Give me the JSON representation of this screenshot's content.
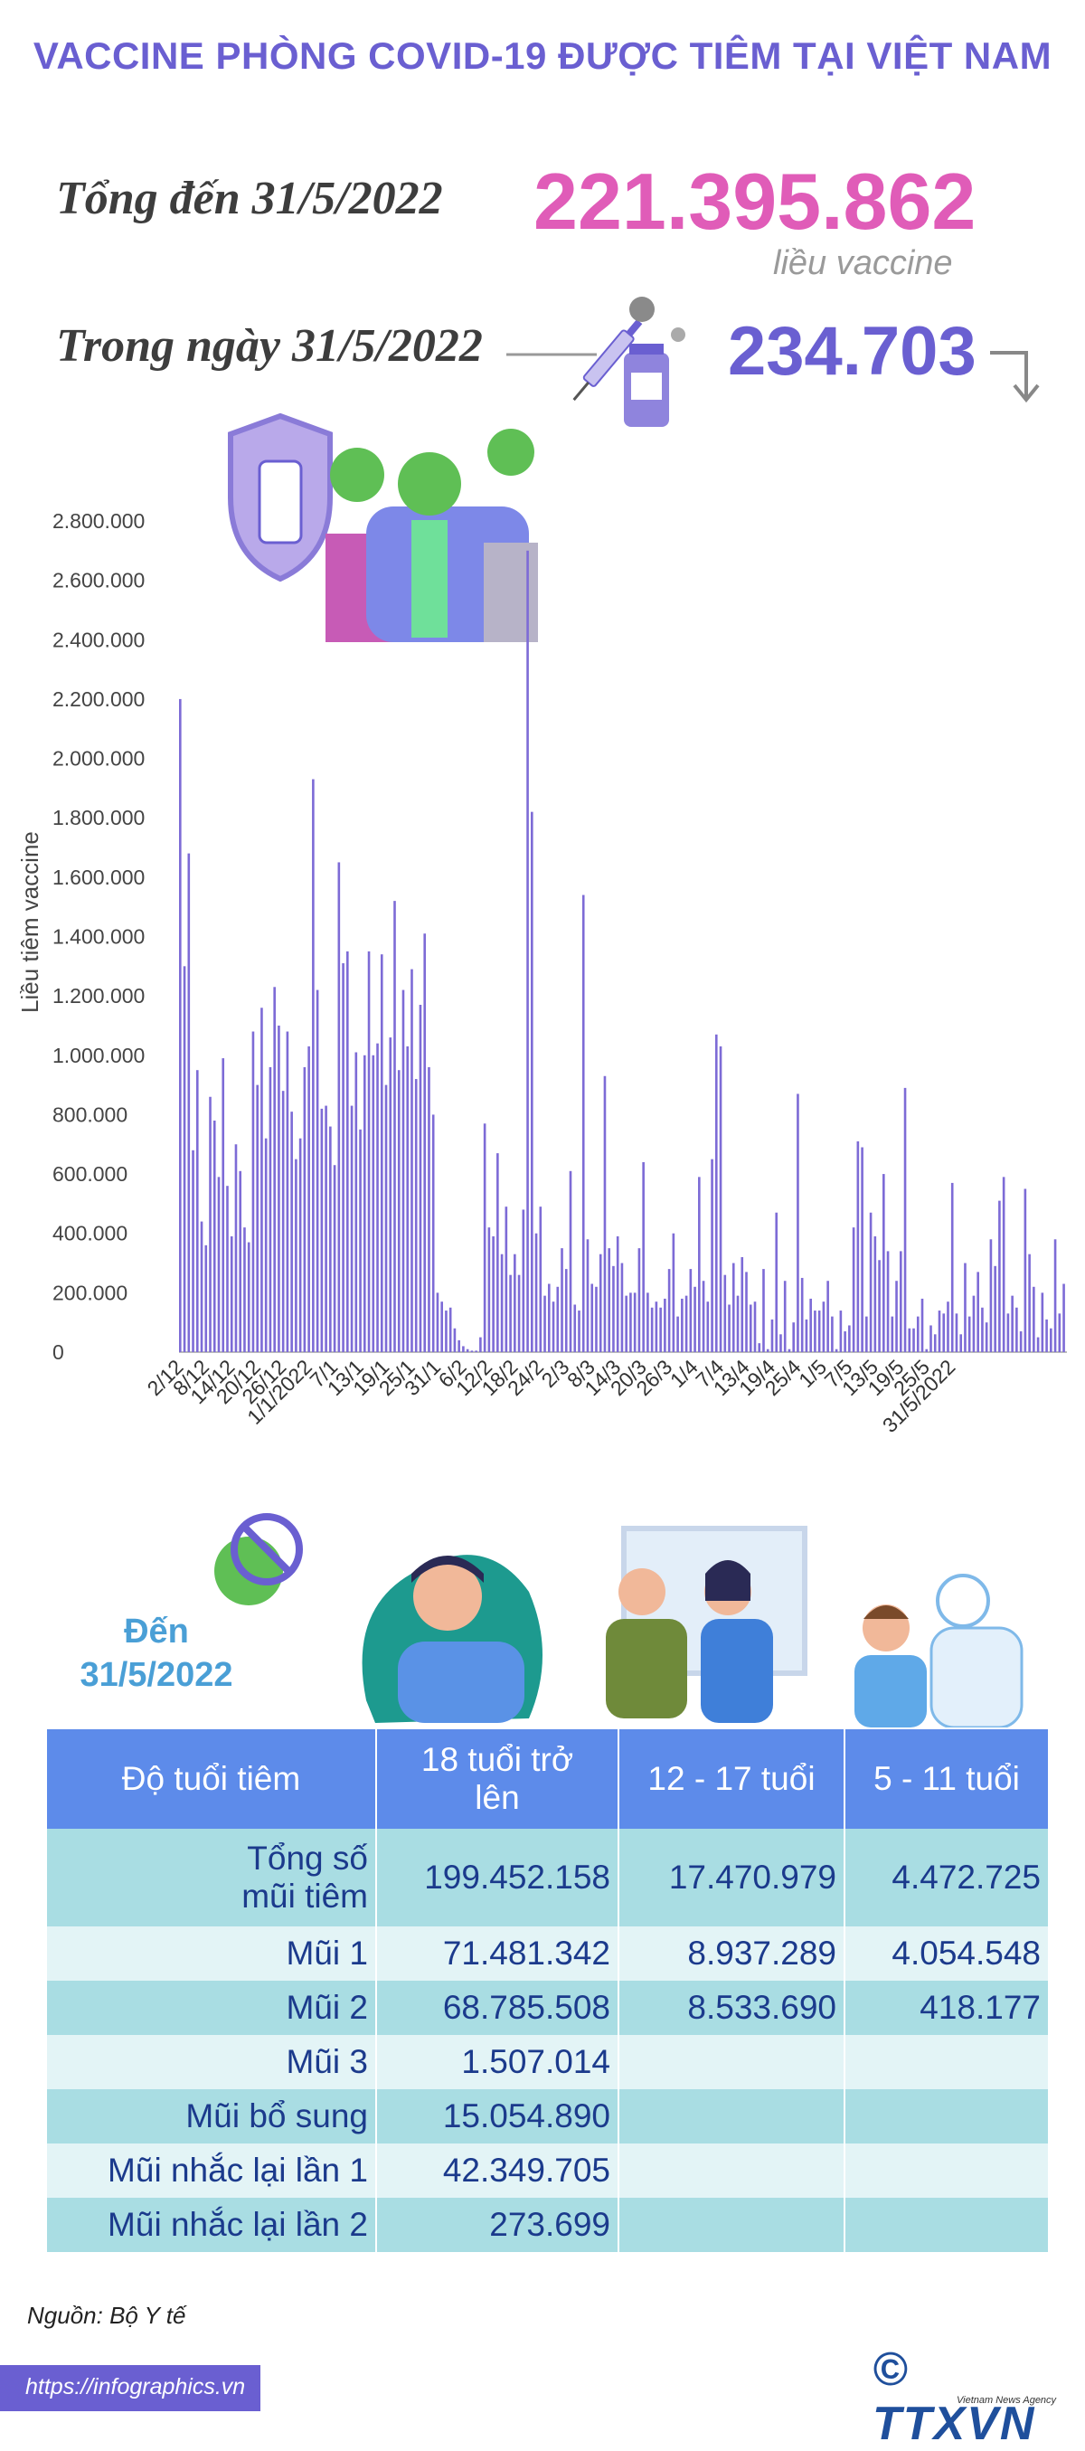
{
  "title": "VACCINE PHÒNG COVID-19 ĐƯỢC TIÊM TẠI VIỆT NAM",
  "summary": {
    "total_label": "Tổng đến 31/5/2022",
    "total_value": "221.395.862",
    "total_unit": "liều vaccine",
    "day_label": "Trong ngày 31/5/2022",
    "day_value": "234.703"
  },
  "colors": {
    "accent": "#6a5fd1",
    "pink": "#e05cb8",
    "bar": "#7d6bd6",
    "table_header": "#5d8bea",
    "row_dark": "#a9dde3",
    "row_light": "#e3f4f6",
    "text_blue": "#1b3a8c"
  },
  "chart_data": {
    "type": "bar",
    "ylabel": "Liều tiêm vaccine",
    "ylim": [
      0,
      2800000
    ],
    "yticks": [
      "0",
      "200.000",
      "400.000",
      "600.000",
      "800.000",
      "1.000.000",
      "1.200.000",
      "1.400.000",
      "1.600.000",
      "1.800.000",
      "2.000.000",
      "2.200.000",
      "2.400.000",
      "2.600.000",
      "2.800.000"
    ],
    "xticks": [
      "2/12",
      "8/12",
      "14/12",
      "20/12",
      "26/12",
      "1/1/2022",
      "7/1",
      "13/1",
      "19/1",
      "25/1",
      "31/1",
      "6/2",
      "12/2",
      "18/2",
      "24/2",
      "2/3",
      "8/3",
      "14/3",
      "20/3",
      "26/3",
      "1/4",
      "7/4",
      "13/4",
      "19/4",
      "25/4",
      "1/5",
      "7/5",
      "13/5",
      "19/5",
      "25/5",
      "31/5/2022"
    ],
    "start_date": "2021-12-01",
    "values": [
      2200000,
      1300000,
      1680000,
      680000,
      950000,
      440000,
      360000,
      860000,
      780000,
      590000,
      990000,
      560000,
      390000,
      700000,
      610000,
      420000,
      370000,
      1080000,
      900000,
      1160000,
      720000,
      960000,
      1230000,
      1100000,
      880000,
      1080000,
      810000,
      650000,
      720000,
      960000,
      1030000,
      1930000,
      1220000,
      820000,
      830000,
      760000,
      630000,
      1650000,
      1310000,
      1350000,
      830000,
      1010000,
      750000,
      1000000,
      1350000,
      1000000,
      1040000,
      1340000,
      900000,
      1060000,
      1520000,
      950000,
      1220000,
      1030000,
      1290000,
      920000,
      1170000,
      1410000,
      960000,
      800000,
      200000,
      170000,
      140000,
      150000,
      80000,
      40000,
      20000,
      10000,
      5000,
      5000,
      50000,
      770000,
      420000,
      390000,
      670000,
      330000,
      490000,
      260000,
      330000,
      260000,
      480000,
      2700000,
      1820000,
      400000,
      490000,
      190000,
      230000,
      170000,
      220000,
      350000,
      280000,
      610000,
      160000,
      140000,
      1540000,
      380000,
      230000,
      220000,
      330000,
      930000,
      350000,
      290000,
      390000,
      300000,
      190000,
      200000,
      200000,
      350000,
      640000,
      200000,
      150000,
      170000,
      150000,
      180000,
      280000,
      400000,
      120000,
      180000,
      190000,
      280000,
      220000,
      590000,
      240000,
      170000,
      650000,
      1070000,
      1030000,
      260000,
      160000,
      300000,
      190000,
      320000,
      270000,
      160000,
      170000,
      30000,
      280000,
      10000,
      110000,
      470000,
      60000,
      240000,
      10000,
      100000,
      870000,
      250000,
      110000,
      180000,
      140000,
      140000,
      170000,
      240000,
      120000,
      10000,
      140000,
      70000,
      90000,
      420000,
      710000,
      690000,
      120000,
      470000,
      390000,
      310000,
      600000,
      340000,
      120000,
      240000,
      340000,
      890000,
      80000,
      80000,
      120000,
      180000,
      10000,
      90000,
      60000,
      140000,
      130000,
      170000,
      570000,
      130000,
      60000,
      300000,
      120000,
      190000,
      270000,
      150000,
      100000,
      380000,
      290000,
      510000,
      590000,
      130000,
      190000,
      150000,
      70000,
      550000,
      330000,
      220000,
      50000,
      200000,
      110000,
      80000,
      380000,
      130000,
      230000
    ]
  },
  "table": {
    "to_date_line1": "Đến",
    "to_date_line2": "31/5/2022",
    "headers": [
      "Độ tuổi tiêm",
      "18 tuổi trở lên",
      "12 - 17 tuổi",
      "5 - 11 tuổi"
    ],
    "rows": [
      {
        "label": "Tổng số mũi tiêm",
        "c1": "199.452.158",
        "c2": "17.470.979",
        "c3": "4.472.725"
      },
      {
        "label": "Mũi 1",
        "c1": "71.481.342",
        "c2": "8.937.289",
        "c3": "4.054.548"
      },
      {
        "label": "Mũi 2",
        "c1": "68.785.508",
        "c2": "8.533.690",
        "c3": "418.177"
      },
      {
        "label": "Mũi 3",
        "c1": "1.507.014",
        "c2": "",
        "c3": ""
      },
      {
        "label": "Mũi bổ sung",
        "c1": "15.054.890",
        "c2": "",
        "c3": ""
      },
      {
        "label": "Mũi nhắc lại lần 1",
        "c1": "42.349.705",
        "c2": "",
        "c3": ""
      },
      {
        "label": "Mũi nhắc lại lần 2",
        "c1": "273.699",
        "c2": "",
        "c3": ""
      }
    ]
  },
  "footer": {
    "source": "Nguồn: Bộ Y tế",
    "site": "https://infographics.vn",
    "logo": "© TTXVN",
    "logo_sub": "Vietnam News Agency"
  }
}
